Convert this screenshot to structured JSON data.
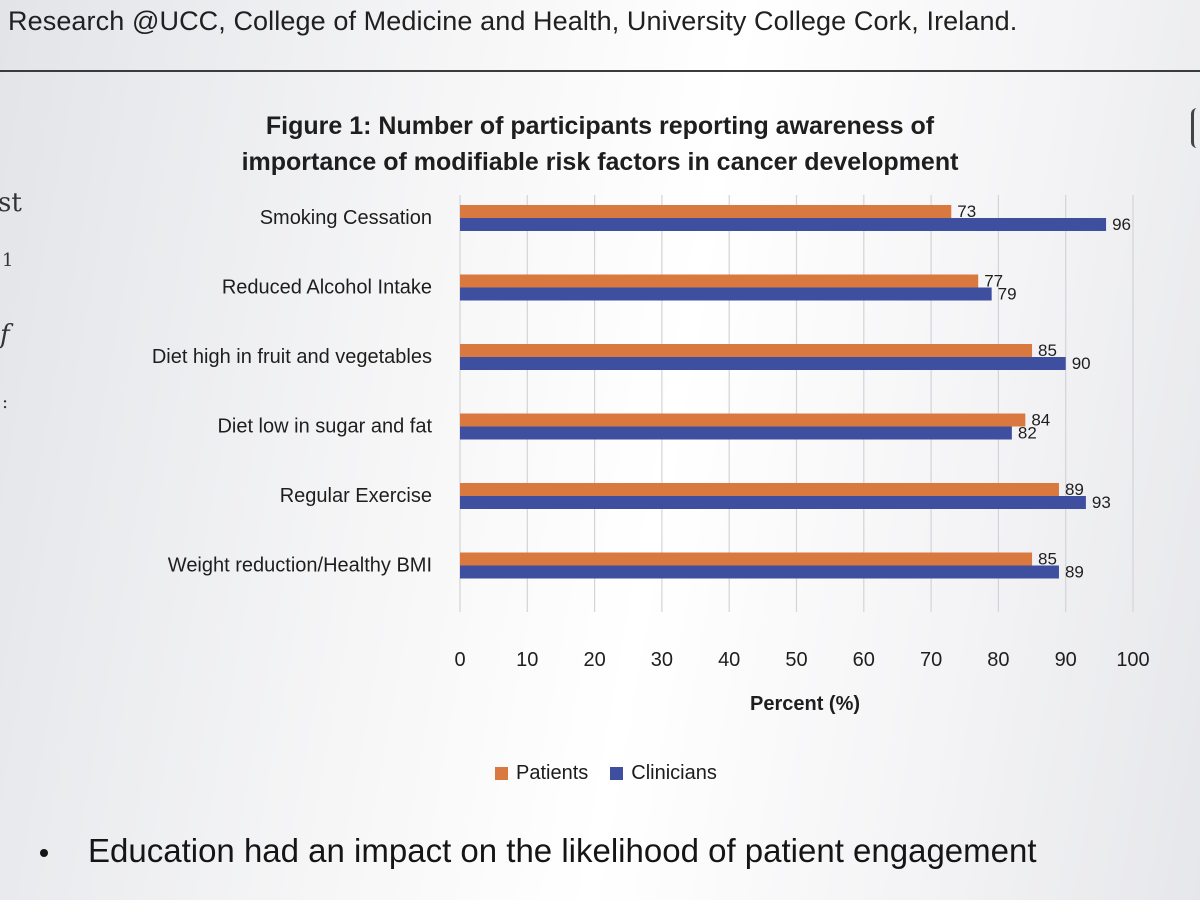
{
  "header": {
    "text": "Research @UCC, College of Medicine and Health, University College Cork, Ireland."
  },
  "side_fragments": [
    "st",
    "1",
    "f",
    ":"
  ],
  "chart_data": {
    "type": "bar",
    "orientation": "horizontal",
    "title_lines": [
      "Figure 1: Number of participants reporting awareness of",
      "importance of modifiable risk factors in cancer development"
    ],
    "categories": [
      "Smoking Cessation",
      "Reduced Alcohol Intake",
      "Diet high in fruit and vegetables",
      "Diet low in sugar and fat",
      "Regular Exercise",
      "Weight reduction/Healthy BMI"
    ],
    "series": [
      {
        "name": "Patients",
        "color": "#d9793f",
        "values": [
          73,
          77,
          85,
          84,
          89,
          85
        ]
      },
      {
        "name": "Clinicians",
        "color": "#3e4f9f",
        "values": [
          96,
          79,
          90,
          82,
          93,
          89
        ]
      }
    ],
    "xlabel": "Percent (%)",
    "xlim": [
      0,
      100
    ],
    "xticks": [
      0,
      10,
      20,
      30,
      40,
      50,
      60,
      70,
      80,
      90,
      100
    ],
    "grid": "vertical gridlines",
    "legend_position": "bottom"
  },
  "footer": {
    "bullet": "Education had an impact on the likelihood of patient engagement"
  }
}
